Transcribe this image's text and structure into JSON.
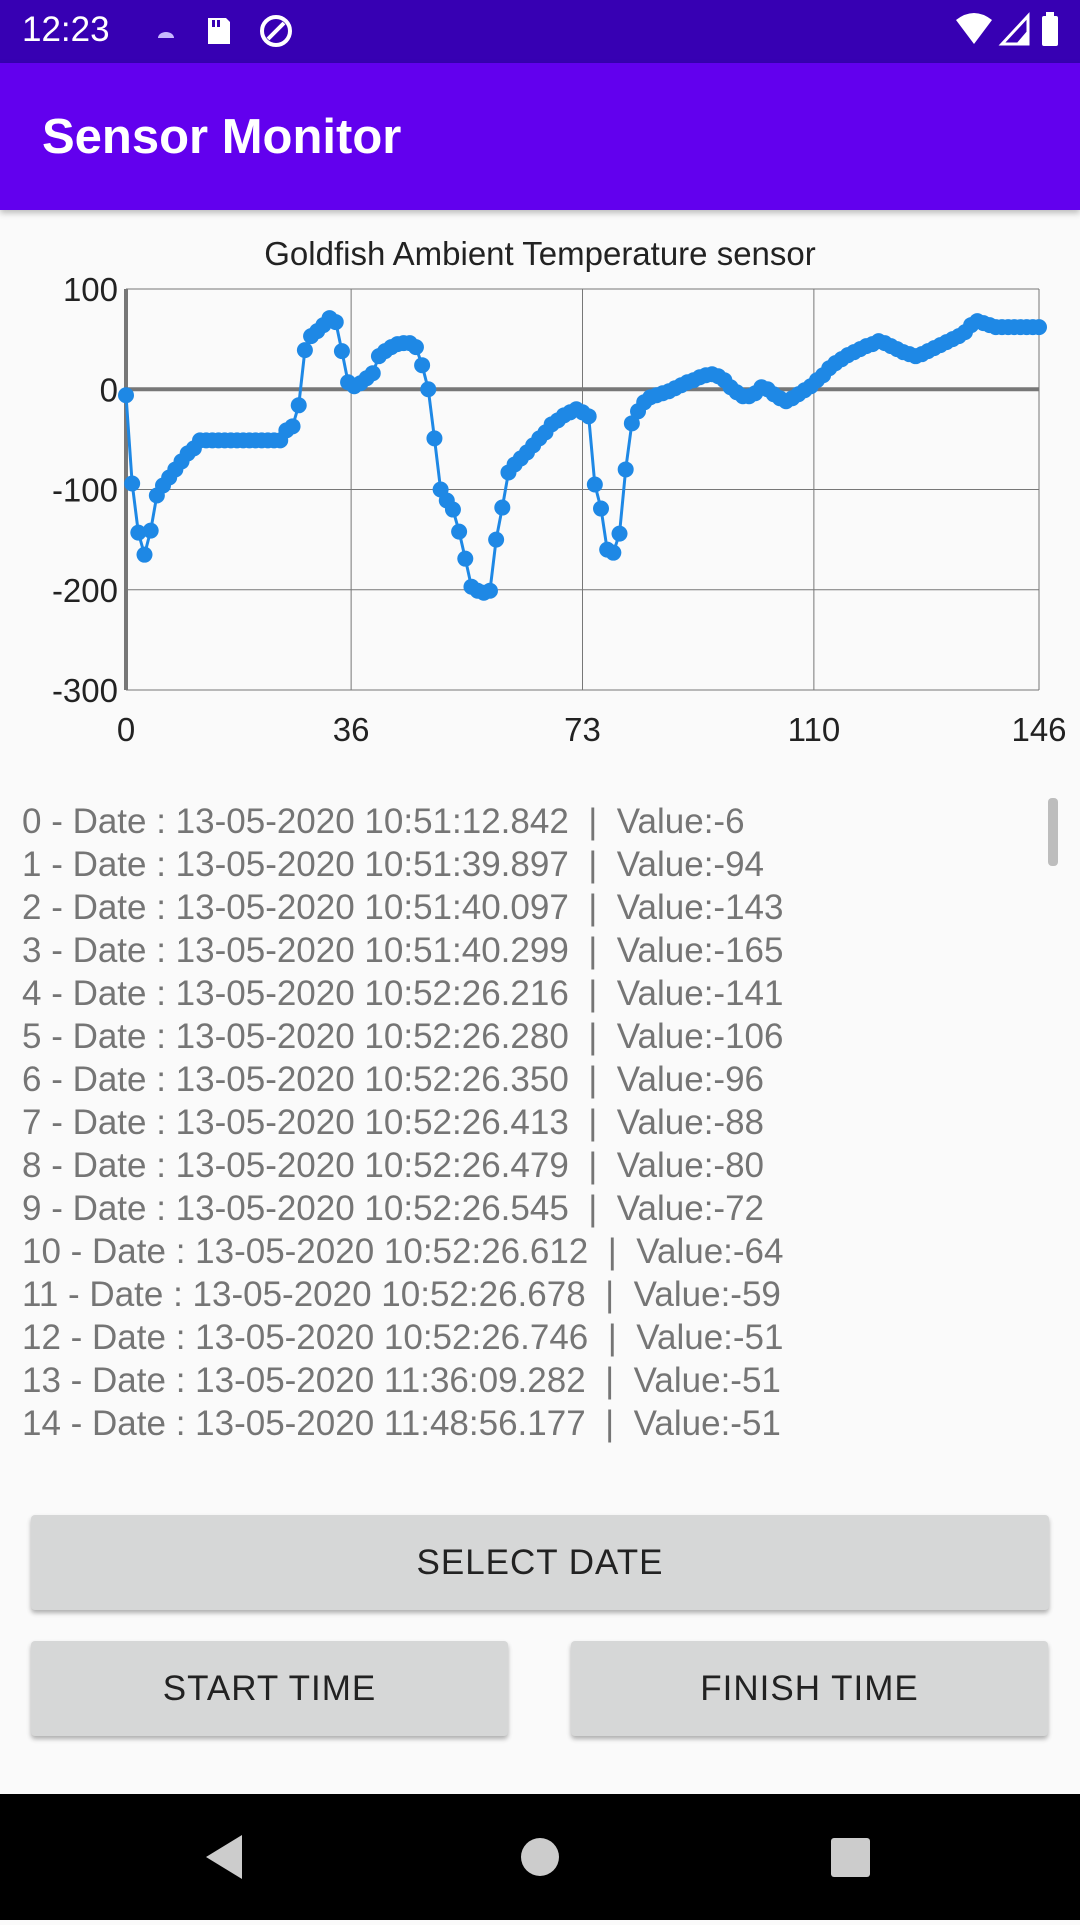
{
  "status_bar": {
    "time": "12:23"
  },
  "app_bar": {
    "title": "Sensor Monitor"
  },
  "chart_data": {
    "type": "line",
    "title": "Goldfish Ambient Temperature sensor",
    "xlabel": "",
    "ylabel": "",
    "xlim": [
      0,
      146
    ],
    "ylim": [
      -300,
      100
    ],
    "x_ticks": [
      "0",
      "36",
      "73",
      "110",
      "146"
    ],
    "y_ticks": [
      "100",
      "0",
      "-100",
      "-200",
      "-300"
    ],
    "grid": true,
    "color": "#1e88e5",
    "series": [
      {
        "values": [
          -6,
          -94,
          -143,
          -165,
          -141,
          -106,
          -96,
          -88,
          -80,
          -72,
          -64,
          -59,
          -51,
          -51,
          -51,
          -51,
          -51,
          -51,
          -51,
          -51,
          -51,
          -51,
          -51,
          -51,
          -51,
          -51,
          -41,
          -37,
          -16,
          39,
          53,
          58,
          64,
          71,
          67,
          38,
          7,
          3,
          6,
          11,
          16,
          33,
          38,
          42,
          45,
          46,
          46,
          42,
          24,
          0,
          -49,
          -100,
          -111,
          -120,
          -142,
          -169,
          -197,
          -201,
          -203,
          -201,
          -150,
          -118,
          -83,
          -75,
          -69,
          -63,
          -56,
          -49,
          -43,
          -35,
          -31,
          -26,
          -23,
          -20,
          -23,
          -27,
          -95,
          -119,
          -160,
          -163,
          -144,
          -80,
          -34,
          -22,
          -13,
          -8,
          -6,
          -4,
          -2,
          1,
          4,
          7,
          9,
          12,
          14,
          15,
          13,
          9,
          2,
          -3,
          -7,
          -7,
          -4,
          2,
          0,
          -5,
          -9,
          -12,
          -9,
          -5,
          -1,
          3,
          9,
          14,
          21,
          26,
          30,
          34,
          37,
          40,
          43,
          45,
          48,
          46,
          43,
          40,
          37,
          35,
          33,
          35,
          38,
          41,
          44,
          47,
          50,
          53,
          57,
          64,
          68,
          66,
          64,
          62,
          62,
          62,
          62,
          62,
          62,
          62,
          62
        ]
      }
    ]
  },
  "log_entries": [
    "0 - Date : 13-05-2020 10:51:12.842  |  Value:-6",
    "1 - Date : 13-05-2020 10:51:39.897  |  Value:-94",
    "2 - Date : 13-05-2020 10:51:40.097  |  Value:-143",
    "3 - Date : 13-05-2020 10:51:40.299  |  Value:-165",
    "4 - Date : 13-05-2020 10:52:26.216  |  Value:-141",
    "5 - Date : 13-05-2020 10:52:26.280  |  Value:-106",
    "6 - Date : 13-05-2020 10:52:26.350  |  Value:-96",
    "7 - Date : 13-05-2020 10:52:26.413  |  Value:-88",
    "8 - Date : 13-05-2020 10:52:26.479  |  Value:-80",
    "9 - Date : 13-05-2020 10:52:26.545  |  Value:-72",
    "10 - Date : 13-05-2020 10:52:26.612  |  Value:-64",
    "11 - Date : 13-05-2020 10:52:26.678  |  Value:-59",
    "12 - Date : 13-05-2020 10:52:26.746  |  Value:-51",
    "13 - Date : 13-05-2020 11:36:09.282  |  Value:-51",
    "14 - Date : 13-05-2020 11:48:56.177  |  Value:-51"
  ],
  "buttons": {
    "select_date": "SELECT DATE",
    "start_time": "START TIME",
    "finish_time": "FINISH TIME"
  },
  "colors": {
    "status_bar": "#3700b3",
    "app_bar": "#6200ee",
    "series": "#1e88e5",
    "button": "#d6d7d7"
  }
}
